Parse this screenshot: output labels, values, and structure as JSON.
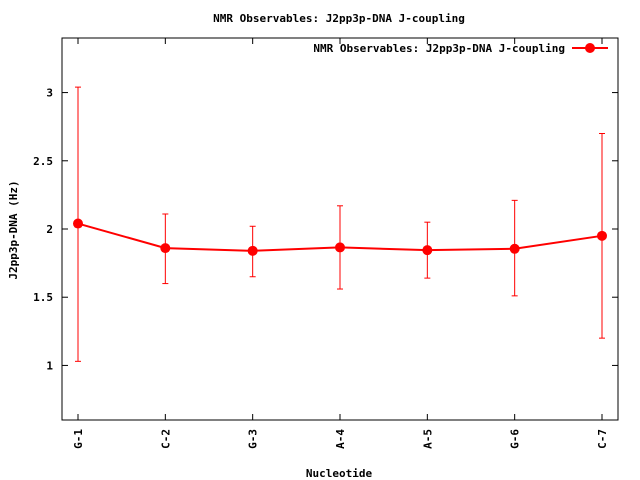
{
  "chart_data": {
    "type": "line",
    "title": "NMR Observables: J2pp3p-DNA J-coupling",
    "xlabel": "Nucleotide",
    "ylabel": "J2pp3p-DNA (Hz)",
    "categories": [
      "G-1",
      "C-2",
      "G-3",
      "A-4",
      "A-5",
      "G-6",
      "C-7"
    ],
    "series": [
      {
        "name": "NMR Observables: J2pp3p-DNA J-coupling",
        "values": [
          2.04,
          1.86,
          1.84,
          1.865,
          1.845,
          1.855,
          1.95
        ],
        "error_low": [
          1.03,
          1.6,
          1.65,
          1.56,
          1.64,
          1.51,
          1.2
        ],
        "error_high": [
          3.04,
          2.11,
          2.02,
          2.17,
          2.05,
          2.21,
          2.7
        ],
        "color": "#ff0000"
      }
    ],
    "ylim": [
      0.6,
      3.4
    ],
    "yticks": [
      "1",
      "1.5",
      "2",
      "2.5",
      "3"
    ],
    "ytick_values": [
      1,
      1.5,
      2,
      2.5,
      3
    ],
    "grid": false,
    "legend": "top-right"
  }
}
